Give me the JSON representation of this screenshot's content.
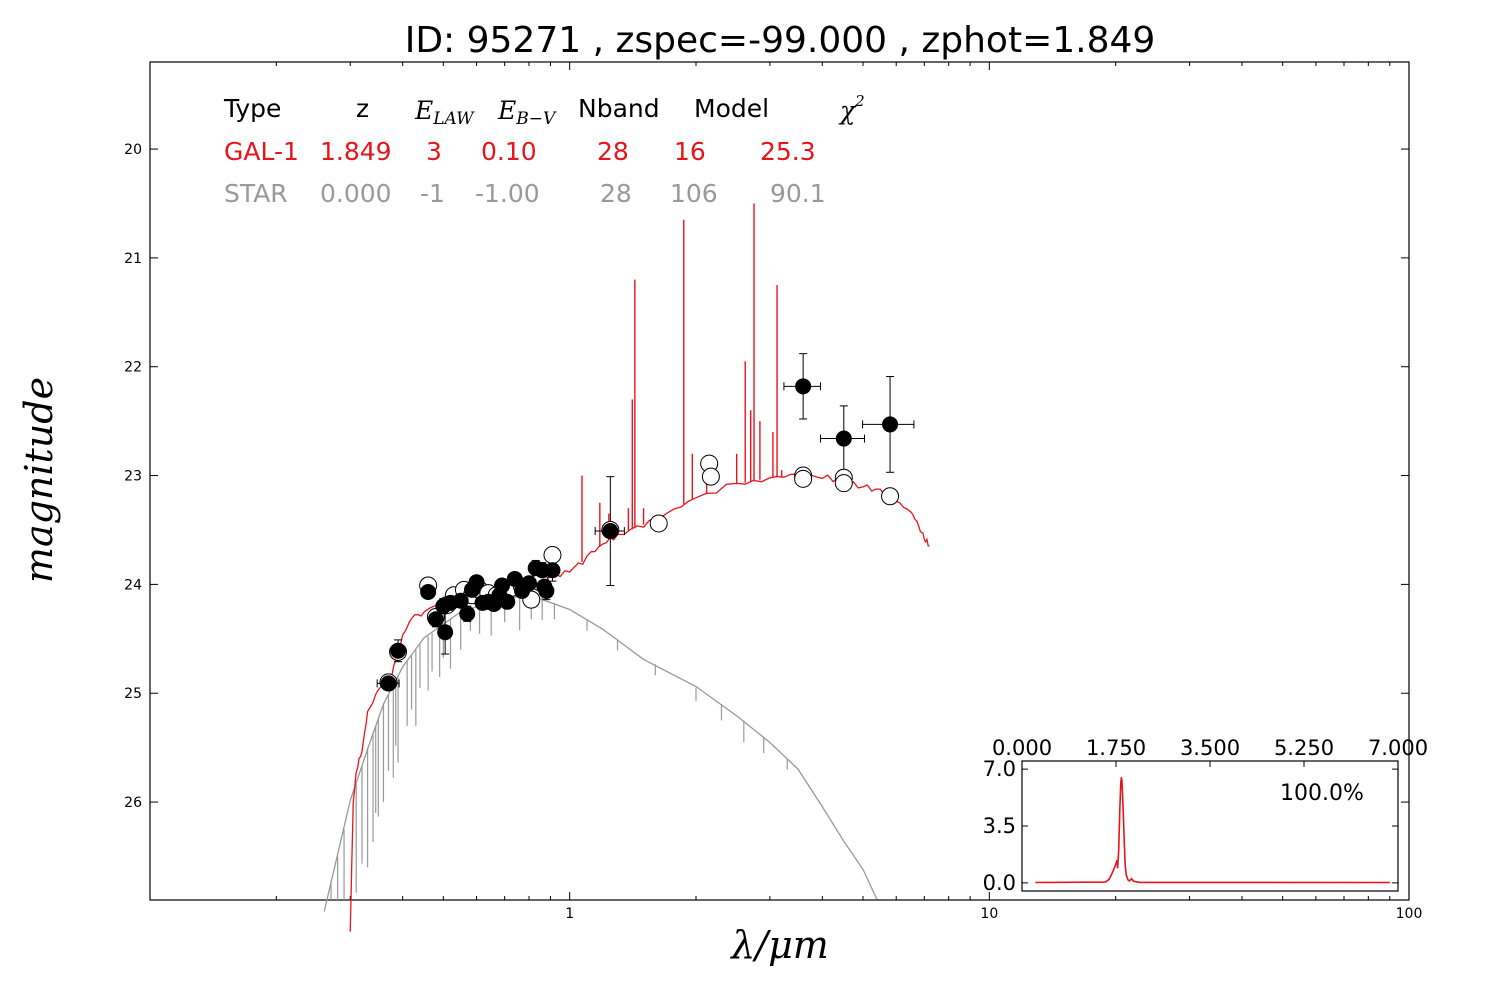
{
  "title": "ID:  95271 , zspec=-99.000 , zphot=1.849",
  "colors": {
    "galaxy": "#e8141c",
    "star": "#999999",
    "axis": "#000000"
  },
  "table": {
    "headers": {
      "type": "Type",
      "z": "z",
      "elaw": "E",
      "elaw_sub": "LAW",
      "ebv": "E",
      "ebv_sub": "B−V",
      "nband": "Nband",
      "model": "Model",
      "chi2": "χ",
      "chi2_sup": "2"
    },
    "rows": [
      {
        "type": "GAL-1",
        "z": "1.849",
        "law": "3",
        "ebv": "0.10",
        "nband": "28",
        "model": "16",
        "chi2": "25.3",
        "color": "#e8141c"
      },
      {
        "type": "STAR",
        "z": "0.000",
        "law": "-1",
        "ebv": "-1.00",
        "nband": "28",
        "model": "106",
        "chi2": "90.1",
        "color": "#999999"
      }
    ]
  },
  "chart_data": [
    {
      "type": "scatter",
      "xlabel": "λ/μm",
      "ylabel": "magnitude",
      "xscale": "log",
      "xlim": [
        0.1,
        100
      ],
      "ylim": [
        26.9,
        19.2
      ],
      "y_inverted": true,
      "x_ticks": [
        "1",
        "10",
        "100"
      ],
      "y_ticks": [
        "20",
        "21",
        "22",
        "23",
        "24",
        "25",
        "26"
      ],
      "series": [
        {
          "kind": "observed",
          "marker": "filled-circle",
          "points": [
            [
              0.37,
              24.91
            ],
            [
              0.39,
              24.61
            ],
            [
              0.46,
              24.07
            ],
            [
              0.48,
              24.32
            ],
            [
              0.5,
              24.2
            ],
            [
              0.505,
              24.44
            ],
            [
              0.52,
              24.17
            ],
            [
              0.55,
              24.15
            ],
            [
              0.57,
              24.27
            ],
            [
              0.585,
              24.05
            ],
            [
              0.6,
              23.98
            ],
            [
              0.62,
              24.17
            ],
            [
              0.64,
              24.16
            ],
            [
              0.66,
              24.18
            ],
            [
              0.68,
              24.1
            ],
            [
              0.69,
              24.01
            ],
            [
              0.71,
              24.16
            ],
            [
              0.74,
              23.95
            ],
            [
              0.77,
              24.06
            ],
            [
              0.8,
              23.99
            ],
            [
              0.83,
              23.85
            ],
            [
              0.86,
              23.87
            ],
            [
              0.87,
              24.02
            ],
            [
              0.88,
              24.06
            ],
            [
              0.91,
              23.87
            ],
            [
              1.25,
              23.51
            ],
            [
              3.6,
              22.18
            ],
            [
              4.5,
              22.66
            ],
            [
              5.8,
              22.53
            ]
          ],
          "y_err": [
            0.05,
            0.1,
            0.06,
            0.07,
            0.07,
            0.2,
            0.06,
            0.06,
            0.07,
            0.06,
            0.06,
            0.06,
            0.06,
            0.06,
            0.06,
            0.06,
            0.06,
            0.06,
            0.06,
            0.06,
            0.07,
            0.07,
            0.08,
            0.08,
            0.1,
            0.5,
            0.3,
            0.3,
            0.44
          ],
          "x_err_frac": [
            0.06,
            0.03,
            0.03,
            0.03,
            0.03,
            0.03,
            0.03,
            0.03,
            0.03,
            0.03,
            0.03,
            0.03,
            0.03,
            0.03,
            0.03,
            0.03,
            0.03,
            0.03,
            0.03,
            0.03,
            0.03,
            0.03,
            0.03,
            0.03,
            0.03,
            0.08,
            0.1,
            0.12,
            0.14
          ]
        },
        {
          "kind": "model-magnitudes",
          "marker": "open-circle",
          "points": [
            [
              0.37,
              24.9
            ],
            [
              0.39,
              24.62
            ],
            [
              0.46,
              24.01
            ],
            [
              0.48,
              24.3
            ],
            [
              0.51,
              24.19
            ],
            [
              0.53,
              24.1
            ],
            [
              0.56,
              24.05
            ],
            [
              0.585,
              24.1
            ],
            [
              0.61,
              24.05
            ],
            [
              0.64,
              24.08
            ],
            [
              0.67,
              24.1
            ],
            [
              0.7,
              24.05
            ],
            [
              0.73,
              24.03
            ],
            [
              0.77,
              24.02
            ],
            [
              0.81,
              24.14
            ],
            [
              0.85,
              23.98
            ],
            [
              0.91,
              23.73
            ],
            [
              1.25,
              23.5
            ],
            [
              1.63,
              23.44
            ],
            [
              2.15,
              22.89
            ],
            [
              2.17,
              23.01
            ],
            [
              3.6,
              23.0
            ],
            [
              3.6,
              23.03
            ],
            [
              4.5,
              23.02
            ],
            [
              4.5,
              23.07
            ],
            [
              5.8,
              23.19
            ]
          ]
        }
      ],
      "spectra": [
        {
          "name": "GAL-1",
          "color": "#e8141c",
          "x_range": [
            0.3,
            7.2
          ]
        },
        {
          "name": "STAR",
          "color": "#999999",
          "x_range": [
            0.26,
            5.4
          ]
        }
      ]
    },
    {
      "type": "line",
      "label": "100.0%",
      "xlim": [
        0,
        7
      ],
      "ylim": [
        -0.5,
        7.5
      ],
      "x_ticks": [
        "0.000",
        "1.750",
        "3.500",
        "5.250",
        "7.000"
      ],
      "y_ticks": [
        "7.0",
        "3.5",
        "0.0"
      ],
      "peak_x": 1.849,
      "peak_y": 6.5,
      "x": [
        0.0,
        1.55,
        1.62,
        1.68,
        1.74,
        1.77,
        1.78,
        1.8,
        1.82,
        1.84,
        1.85,
        1.86,
        1.88,
        1.9,
        1.92,
        1.94,
        1.97,
        2.0,
        2.04,
        2.08,
        2.2,
        7.0
      ],
      "y": [
        0.02,
        0.05,
        0.2,
        0.6,
        1.1,
        1.4,
        0.9,
        2.0,
        4.5,
        6.2,
        6.5,
        6.3,
        4.8,
        2.8,
        1.2,
        0.5,
        0.2,
        0.12,
        0.25,
        0.1,
        0.03,
        0.02
      ]
    }
  ]
}
